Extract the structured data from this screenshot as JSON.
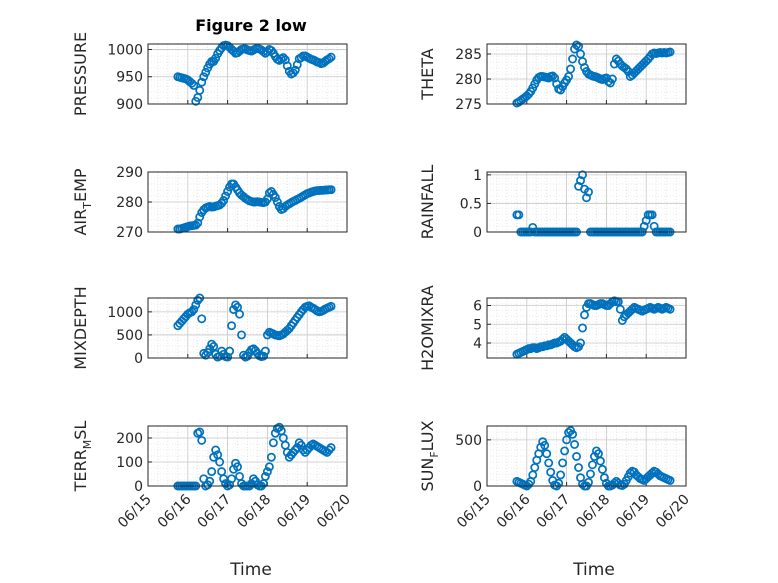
{
  "figure": {
    "title": "Figure 2 low",
    "xlabel": "Time",
    "xticks": [
      "06/15",
      "06/16",
      "06/17",
      "06/18",
      "06/19",
      "06/20"
    ]
  },
  "style": {
    "marker_color": "#0072BD",
    "grid_color": "#d6d6d6",
    "axis_color": "#262626"
  },
  "chart_data": [
    {
      "type": "scatter",
      "ylabel": "PRESSURE",
      "ylim": [
        900,
        1010
      ],
      "yticks": [
        "900",
        "950",
        "1000"
      ],
      "title": "Figure 2 low",
      "x": [
        0.75,
        0.8,
        0.85,
        0.9,
        0.95,
        1.0,
        1.05,
        1.1,
        1.15,
        1.2,
        1.25,
        1.3,
        1.35,
        1.4,
        1.45,
        1.5,
        1.55,
        1.6,
        1.65,
        1.7,
        1.75,
        1.8,
        1.85,
        1.9,
        1.95,
        2.0,
        2.05,
        2.1,
        2.15,
        2.2,
        2.25,
        2.3,
        2.35,
        2.4,
        2.45,
        2.5,
        2.55,
        2.6,
        2.65,
        2.7,
        2.75,
        2.8,
        2.85,
        2.9,
        2.95,
        3.0,
        3.05,
        3.1,
        3.15,
        3.2,
        3.25,
        3.3,
        3.35,
        3.4,
        3.45,
        3.5,
        3.55,
        3.6,
        3.65,
        3.7,
        3.75,
        3.8,
        3.85,
        3.9,
        3.95,
        4.0,
        4.05,
        4.1,
        4.15,
        4.2,
        4.25,
        4.3,
        4.35,
        4.4,
        4.45,
        4.5,
        4.55,
        4.6
      ],
      "y": [
        950,
        949,
        948,
        947,
        946,
        944,
        941,
        938,
        934,
        905,
        912,
        925,
        940,
        950,
        958,
        966,
        973,
        978,
        978,
        984,
        992,
        998,
        1003,
        1007,
        1008,
        1007,
        1004,
        1000,
        997,
        993,
        994,
        997,
        1000,
        1001,
        1001,
        999,
        998,
        997,
        999,
        1001,
        1002,
        1001,
        999,
        996,
        993,
        996,
        1000,
        998,
        993,
        987,
        982,
        980,
        983,
        985,
        981,
        970,
        960,
        955,
        957,
        962,
        972,
        983,
        985,
        988,
        988,
        986,
        984,
        982,
        981,
        979,
        977,
        976,
        974,
        975,
        978,
        981,
        983,
        986
      ]
    },
    {
      "type": "scatter",
      "ylabel": "THETA",
      "ylim": [
        275,
        287
      ],
      "yticks": [
        "275",
        "280",
        "285"
      ],
      "x": [
        0.75,
        0.8,
        0.85,
        0.9,
        0.95,
        1.0,
        1.05,
        1.1,
        1.15,
        1.2,
        1.25,
        1.3,
        1.35,
        1.4,
        1.45,
        1.5,
        1.55,
        1.6,
        1.65,
        1.7,
        1.75,
        1.8,
        1.85,
        1.9,
        1.95,
        2.0,
        2.05,
        2.1,
        2.15,
        2.2,
        2.25,
        2.3,
        2.35,
        2.4,
        2.45,
        2.5,
        2.55,
        2.6,
        2.65,
        2.7,
        2.75,
        2.8,
        2.85,
        2.9,
        2.95,
        3.0,
        3.05,
        3.1,
        3.15,
        3.2,
        3.25,
        3.3,
        3.35,
        3.4,
        3.45,
        3.5,
        3.55,
        3.6,
        3.65,
        3.7,
        3.75,
        3.8,
        3.85,
        3.9,
        3.95,
        4.0,
        4.05,
        4.1,
        4.15,
        4.2,
        4.25,
        4.3,
        4.35,
        4.4,
        4.45,
        4.5,
        4.55,
        4.6
      ],
      "y": [
        275.2,
        275.4,
        275.7,
        276,
        276.3,
        276.6,
        277,
        277.5,
        278.2,
        279,
        279.8,
        280.3,
        280.5,
        280.5,
        280.4,
        280.3,
        280.2,
        280.5,
        280.6,
        280.2,
        279,
        278,
        277.8,
        278.5,
        279.2,
        279.8,
        280.5,
        282,
        284,
        286,
        286.8,
        286.5,
        285,
        283.5,
        282.3,
        281.5,
        281,
        280.8,
        280.6,
        280.5,
        280.4,
        280.2,
        280,
        279.9,
        280.1,
        280.2,
        279.5,
        279.2,
        280,
        283,
        284,
        283.6,
        283,
        282.6,
        282.3,
        282,
        281.5,
        280.5,
        280.8,
        281.2,
        281.6,
        282,
        282.4,
        282.8,
        283.2,
        283.6,
        284,
        284.5,
        285,
        285.2,
        285.1,
        285.2,
        285.3,
        285.2,
        285.3,
        285.2,
        285.3,
        285.4
      ]
    },
    {
      "type": "scatter",
      "ylabel": "AIR_TEMP",
      "ylim": [
        270,
        290
      ],
      "yticks": [
        "270",
        "280",
        "290"
      ],
      "x": [
        0.75,
        0.8,
        0.85,
        0.9,
        0.95,
        1.0,
        1.05,
        1.1,
        1.15,
        1.2,
        1.25,
        1.3,
        1.35,
        1.4,
        1.45,
        1.5,
        1.55,
        1.6,
        1.65,
        1.7,
        1.75,
        1.8,
        1.85,
        1.9,
        1.95,
        2.0,
        2.05,
        2.1,
        2.15,
        2.2,
        2.25,
        2.3,
        2.35,
        2.4,
        2.45,
        2.5,
        2.55,
        2.6,
        2.65,
        2.7,
        2.75,
        2.8,
        2.85,
        2.9,
        2.95,
        3.0,
        3.05,
        3.1,
        3.15,
        3.2,
        3.25,
        3.3,
        3.35,
        3.4,
        3.45,
        3.5,
        3.55,
        3.6,
        3.65,
        3.7,
        3.75,
        3.8,
        3.85,
        3.9,
        3.95,
        4.0,
        4.05,
        4.1,
        4.15,
        4.2,
        4.25,
        4.3,
        4.35,
        4.4,
        4.45,
        4.5,
        4.55,
        4.6
      ],
      "y": [
        271,
        271,
        271.2,
        271.4,
        271.6,
        271.8,
        272,
        272.1,
        272.2,
        272.3,
        273,
        275,
        276.5,
        277.4,
        278,
        278.3,
        278.5,
        278.3,
        278.4,
        278.6,
        278.8,
        279,
        279.6,
        280.5,
        282,
        283.5,
        285,
        286,
        286,
        285,
        284,
        283,
        282.3,
        281.8,
        281.2,
        280.8,
        280.4,
        280.2,
        280,
        280,
        280.1,
        280,
        279.9,
        279.8,
        280,
        281,
        283,
        283.5,
        282.5,
        281.5,
        280,
        278.5,
        277.5,
        277.8,
        278.5,
        279,
        279.4,
        279.8,
        280.2,
        280.5,
        280.9,
        281.2,
        281.6,
        282,
        282.4,
        282.8,
        283,
        283.3,
        283.5,
        283.7,
        283.8,
        283.8,
        283.9,
        283.9,
        284,
        284,
        284.1,
        284.1
      ]
    },
    {
      "type": "scatter",
      "ylabel": "RAINFALL",
      "ylim": [
        0,
        1.05
      ],
      "yticks": [
        "0",
        "0.5",
        "1"
      ],
      "x": [
        0.75,
        0.8,
        0.85,
        0.9,
        0.95,
        1.0,
        1.05,
        1.1,
        1.15,
        1.2,
        1.25,
        1.3,
        1.35,
        1.4,
        1.45,
        1.5,
        1.55,
        1.6,
        1.65,
        1.7,
        1.75,
        1.8,
        1.85,
        1.9,
        1.95,
        2.0,
        2.05,
        2.1,
        2.15,
        2.2,
        2.25,
        2.3,
        2.35,
        2.4,
        2.45,
        2.5,
        2.55,
        2.6,
        2.65,
        2.7,
        2.75,
        2.8,
        2.85,
        2.9,
        2.95,
        3.0,
        3.05,
        3.1,
        3.15,
        3.2,
        3.25,
        3.3,
        3.35,
        3.4,
        3.45,
        3.5,
        3.55,
        3.6,
        3.65,
        3.7,
        3.75,
        3.8,
        3.85,
        3.9,
        3.95,
        4.0,
        4.05,
        4.1,
        4.15,
        4.2,
        4.25,
        4.3,
        4.35,
        4.4,
        4.45,
        4.5,
        4.55,
        4.6
      ],
      "y": [
        0.3,
        0.3,
        0,
        0,
        0,
        0,
        0,
        0,
        0.08,
        0,
        0,
        0,
        0,
        0,
        0,
        0,
        0,
        0,
        0,
        0,
        0,
        0,
        0,
        0,
        0,
        0,
        0,
        0,
        0,
        0,
        0,
        0.8,
        0.9,
        1.0,
        0.75,
        0.6,
        0.7,
        0,
        0,
        0,
        0,
        0,
        0,
        0,
        0,
        0,
        0,
        0,
        0,
        0,
        0,
        0,
        0,
        0,
        0,
        0,
        0,
        0,
        0,
        0,
        0,
        0,
        0,
        0,
        0.1,
        0.2,
        0.3,
        0.3,
        0.3,
        0.1,
        0,
        0,
        0,
        0,
        0,
        0,
        0,
        0
      ]
    },
    {
      "type": "scatter",
      "ylabel": "MIXDEPTH",
      "ylim": [
        0,
        1300
      ],
      "yticks": [
        "0",
        "500",
        "1000"
      ],
      "x": [
        0.75,
        0.8,
        0.85,
        0.9,
        0.95,
        1.0,
        1.05,
        1.1,
        1.15,
        1.2,
        1.25,
        1.3,
        1.35,
        1.4,
        1.45,
        1.5,
        1.55,
        1.6,
        1.65,
        1.7,
        1.75,
        1.8,
        1.85,
        1.9,
        1.95,
        2.0,
        2.05,
        2.1,
        2.15,
        2.2,
        2.25,
        2.3,
        2.35,
        2.4,
        2.45,
        2.5,
        2.55,
        2.6,
        2.65,
        2.7,
        2.75,
        2.8,
        2.85,
        2.9,
        2.95,
        3.0,
        3.05,
        3.1,
        3.15,
        3.2,
        3.25,
        3.3,
        3.35,
        3.4,
        3.45,
        3.5,
        3.55,
        3.6,
        3.65,
        3.7,
        3.75,
        3.8,
        3.85,
        3.9,
        3.95,
        4.0,
        4.05,
        4.1,
        4.15,
        4.2,
        4.25,
        4.3,
        4.35,
        4.4,
        4.45,
        4.5,
        4.55,
        4.6
      ],
      "y": [
        700,
        750,
        800,
        850,
        900,
        950,
        980,
        1000,
        1050,
        1150,
        1250,
        1300,
        850,
        100,
        60,
        120,
        200,
        300,
        250,
        80,
        20,
        40,
        150,
        80,
        30,
        20,
        150,
        700,
        1050,
        1150,
        1100,
        950,
        500,
        60,
        20,
        40,
        120,
        180,
        200,
        160,
        100,
        50,
        30,
        40,
        150,
        500,
        560,
        540,
        520,
        500,
        490,
        480,
        500,
        520,
        560,
        600,
        640,
        700,
        760,
        820,
        880,
        940,
        1000,
        1050,
        1100,
        1120,
        1130,
        1100,
        1080,
        1050,
        1020,
        1000,
        1010,
        1030,
        1060,
        1080,
        1100,
        1120
      ]
    },
    {
      "type": "scatter",
      "ylabel": "H2OMIXRA",
      "ylim": [
        3.2,
        6.4
      ],
      "yticks": [
        "4",
        "5",
        "6"
      ],
      "x": [
        0.75,
        0.8,
        0.85,
        0.9,
        0.95,
        1.0,
        1.05,
        1.1,
        1.15,
        1.2,
        1.25,
        1.3,
        1.35,
        1.4,
        1.45,
        1.5,
        1.55,
        1.6,
        1.65,
        1.7,
        1.75,
        1.8,
        1.85,
        1.9,
        1.95,
        2.0,
        2.05,
        2.1,
        2.15,
        2.2,
        2.25,
        2.3,
        2.35,
        2.4,
        2.45,
        2.5,
        2.55,
        2.6,
        2.65,
        2.7,
        2.75,
        2.8,
        2.85,
        2.9,
        2.95,
        3.0,
        3.05,
        3.1,
        3.15,
        3.2,
        3.25,
        3.3,
        3.35,
        3.4,
        3.45,
        3.5,
        3.55,
        3.6,
        3.65,
        3.7,
        3.75,
        3.8,
        3.85,
        3.9,
        3.95,
        4.0,
        4.05,
        4.1,
        4.15,
        4.2,
        4.25,
        4.3,
        4.35,
        4.4,
        4.45,
        4.5,
        4.55,
        4.6
      ],
      "y": [
        3.4,
        3.45,
        3.5,
        3.55,
        3.6,
        3.65,
        3.7,
        3.7,
        3.75,
        3.75,
        3.7,
        3.75,
        3.8,
        3.8,
        3.85,
        3.85,
        3.9,
        3.9,
        3.95,
        4.0,
        4.0,
        4.05,
        4.1,
        4.2,
        4.3,
        4.2,
        4.1,
        4.0,
        3.9,
        3.8,
        3.75,
        3.8,
        4.0,
        4.8,
        5.5,
        5.9,
        6.1,
        6.1,
        6.05,
        6.0,
        6.0,
        6.05,
        6.1,
        6.1,
        6.05,
        6.0,
        6.0,
        6.1,
        6.2,
        6.25,
        6.2,
        6.2,
        5.8,
        5.2,
        5.4,
        5.5,
        5.6,
        5.7,
        5.8,
        5.9,
        5.85,
        5.8,
        5.75,
        5.7,
        5.75,
        5.8,
        5.85,
        5.9,
        5.85,
        5.8,
        5.85,
        5.9,
        5.85,
        5.8,
        5.85,
        5.9,
        5.85,
        5.8
      ]
    },
    {
      "type": "scatter",
      "ylabel": "TERR_MSL",
      "ylim": [
        0,
        250
      ],
      "yticks": [
        "0",
        "100",
        "200"
      ],
      "x": [
        0.75,
        0.8,
        0.85,
        0.9,
        0.95,
        1.0,
        1.05,
        1.1,
        1.15,
        1.2,
        1.25,
        1.3,
        1.35,
        1.4,
        1.45,
        1.5,
        1.55,
        1.6,
        1.65,
        1.7,
        1.75,
        1.8,
        1.85,
        1.9,
        1.95,
        2.0,
        2.05,
        2.1,
        2.15,
        2.2,
        2.25,
        2.3,
        2.35,
        2.4,
        2.45,
        2.5,
        2.55,
        2.6,
        2.65,
        2.7,
        2.75,
        2.8,
        2.85,
        2.9,
        2.95,
        3.0,
        3.05,
        3.1,
        3.15,
        3.2,
        3.25,
        3.3,
        3.35,
        3.4,
        3.45,
        3.5,
        3.55,
        3.6,
        3.65,
        3.7,
        3.75,
        3.8,
        3.85,
        3.9,
        3.95,
        4.0,
        4.05,
        4.1,
        4.15,
        4.2,
        4.25,
        4.3,
        4.35,
        4.4,
        4.45,
        4.5,
        4.55,
        4.6
      ],
      "y": [
        0,
        0,
        0,
        0,
        0,
        0,
        0,
        0,
        0,
        0,
        220,
        225,
        190,
        30,
        0,
        5,
        20,
        60,
        120,
        150,
        130,
        100,
        60,
        30,
        10,
        0,
        5,
        30,
        70,
        95,
        80,
        40,
        10,
        0,
        0,
        0,
        0,
        10,
        30,
        20,
        5,
        0,
        0,
        10,
        40,
        60,
        80,
        120,
        180,
        220,
        240,
        245,
        230,
        200,
        170,
        140,
        120,
        130,
        140,
        150,
        160,
        180,
        170,
        150,
        140,
        150,
        160,
        170,
        175,
        170,
        165,
        160,
        155,
        150,
        145,
        140,
        150,
        160
      ]
    },
    {
      "type": "scatter",
      "ylabel": "SUN_FLUX",
      "ylim": [
        0,
        650
      ],
      "yticks": [
        "0",
        "500"
      ],
      "x": [
        0.75,
        0.8,
        0.85,
        0.9,
        0.95,
        1.0,
        1.05,
        1.1,
        1.15,
        1.2,
        1.25,
        1.3,
        1.35,
        1.4,
        1.45,
        1.5,
        1.55,
        1.6,
        1.65,
        1.7,
        1.75,
        1.8,
        1.85,
        1.9,
        1.95,
        2.0,
        2.05,
        2.1,
        2.15,
        2.2,
        2.25,
        2.3,
        2.35,
        2.4,
        2.45,
        2.5,
        2.55,
        2.6,
        2.65,
        2.7,
        2.75,
        2.8,
        2.85,
        2.9,
        2.95,
        3.0,
        3.05,
        3.1,
        3.15,
        3.2,
        3.25,
        3.3,
        3.35,
        3.4,
        3.45,
        3.5,
        3.55,
        3.6,
        3.65,
        3.7,
        3.75,
        3.8,
        3.85,
        3.9,
        3.95,
        4.0,
        4.05,
        4.1,
        4.15,
        4.2,
        4.25,
        4.3,
        4.35,
        4.4,
        4.45,
        4.5,
        4.55,
        4.6
      ],
      "y": [
        50,
        40,
        30,
        20,
        10,
        0,
        20,
        50,
        120,
        200,
        280,
        350,
        420,
        480,
        440,
        350,
        250,
        150,
        60,
        10,
        0,
        30,
        120,
        250,
        380,
        500,
        580,
        600,
        560,
        450,
        320,
        200,
        90,
        20,
        0,
        0,
        40,
        130,
        230,
        320,
        380,
        350,
        270,
        180,
        90,
        30,
        0,
        0,
        10,
        30,
        50,
        30,
        10,
        5,
        20,
        60,
        100,
        140,
        160,
        150,
        120,
        100,
        80,
        70,
        60,
        80,
        100,
        120,
        140,
        160,
        150,
        130,
        110,
        100,
        90,
        80,
        70,
        60
      ]
    }
  ]
}
